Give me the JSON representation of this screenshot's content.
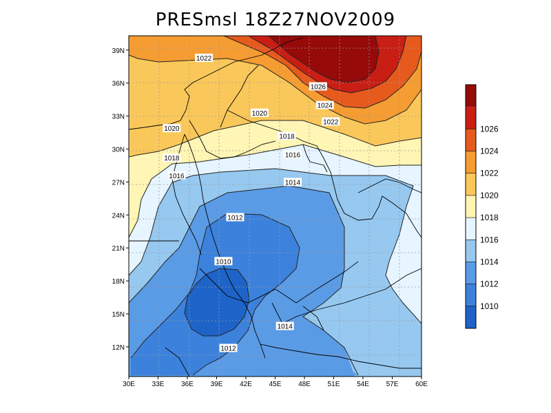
{
  "title": "PRESmsl  18Z27NOV2009",
  "map": {
    "variable": "PRESmsl",
    "x_ticks": [
      "30E",
      "33E",
      "36E",
      "39E",
      "42E",
      "45E",
      "48E",
      "51E",
      "54E",
      "57E",
      "60E"
    ],
    "y_ticks": [
      "12N",
      "15N",
      "18N",
      "21N",
      "24N",
      "27N",
      "30N",
      "33N",
      "36N",
      "39N"
    ],
    "contour_labels": [
      {
        "text": "1022",
        "lon": 37.7,
        "lat": 38.3
      },
      {
        "text": "1026",
        "lon": 49.4,
        "lat": 35.7
      },
      {
        "text": "1024",
        "lon": 50.1,
        "lat": 34.0
      },
      {
        "text": "1022",
        "lon": 50.7,
        "lat": 32.5
      },
      {
        "text": "1020",
        "lon": 43.4,
        "lat": 33.3
      },
      {
        "text": "1020",
        "lon": 34.4,
        "lat": 31.9
      },
      {
        "text": "1018",
        "lon": 46.2,
        "lat": 31.2
      },
      {
        "text": "1016",
        "lon": 46.8,
        "lat": 29.5
      },
      {
        "text": "1018",
        "lon": 34.4,
        "lat": 29.2
      },
      {
        "text": "1016",
        "lon": 34.9,
        "lat": 27.6
      },
      {
        "text": "1014",
        "lon": 46.8,
        "lat": 27.0
      },
      {
        "text": "1012",
        "lon": 40.9,
        "lat": 23.8
      },
      {
        "text": "1010",
        "lon": 39.7,
        "lat": 19.8
      },
      {
        "text": "1014",
        "lon": 46.0,
        "lat": 13.9
      },
      {
        "text": "1012",
        "lon": 40.2,
        "lat": 11.9
      }
    ]
  },
  "colorbar": {
    "labels": [
      "1010",
      "1012",
      "1014",
      "1016",
      "1018",
      "1020",
      "1022",
      "1024",
      "1026"
    ],
    "colors": [
      "#1e64c8",
      "#3c82dc",
      "#5a9be6",
      "#96c8f0",
      "#e6f5ff",
      "#fff5b4",
      "#fac85a",
      "#f59c32",
      "#e65a1e",
      "#c81e14",
      "#960a0a"
    ]
  }
}
